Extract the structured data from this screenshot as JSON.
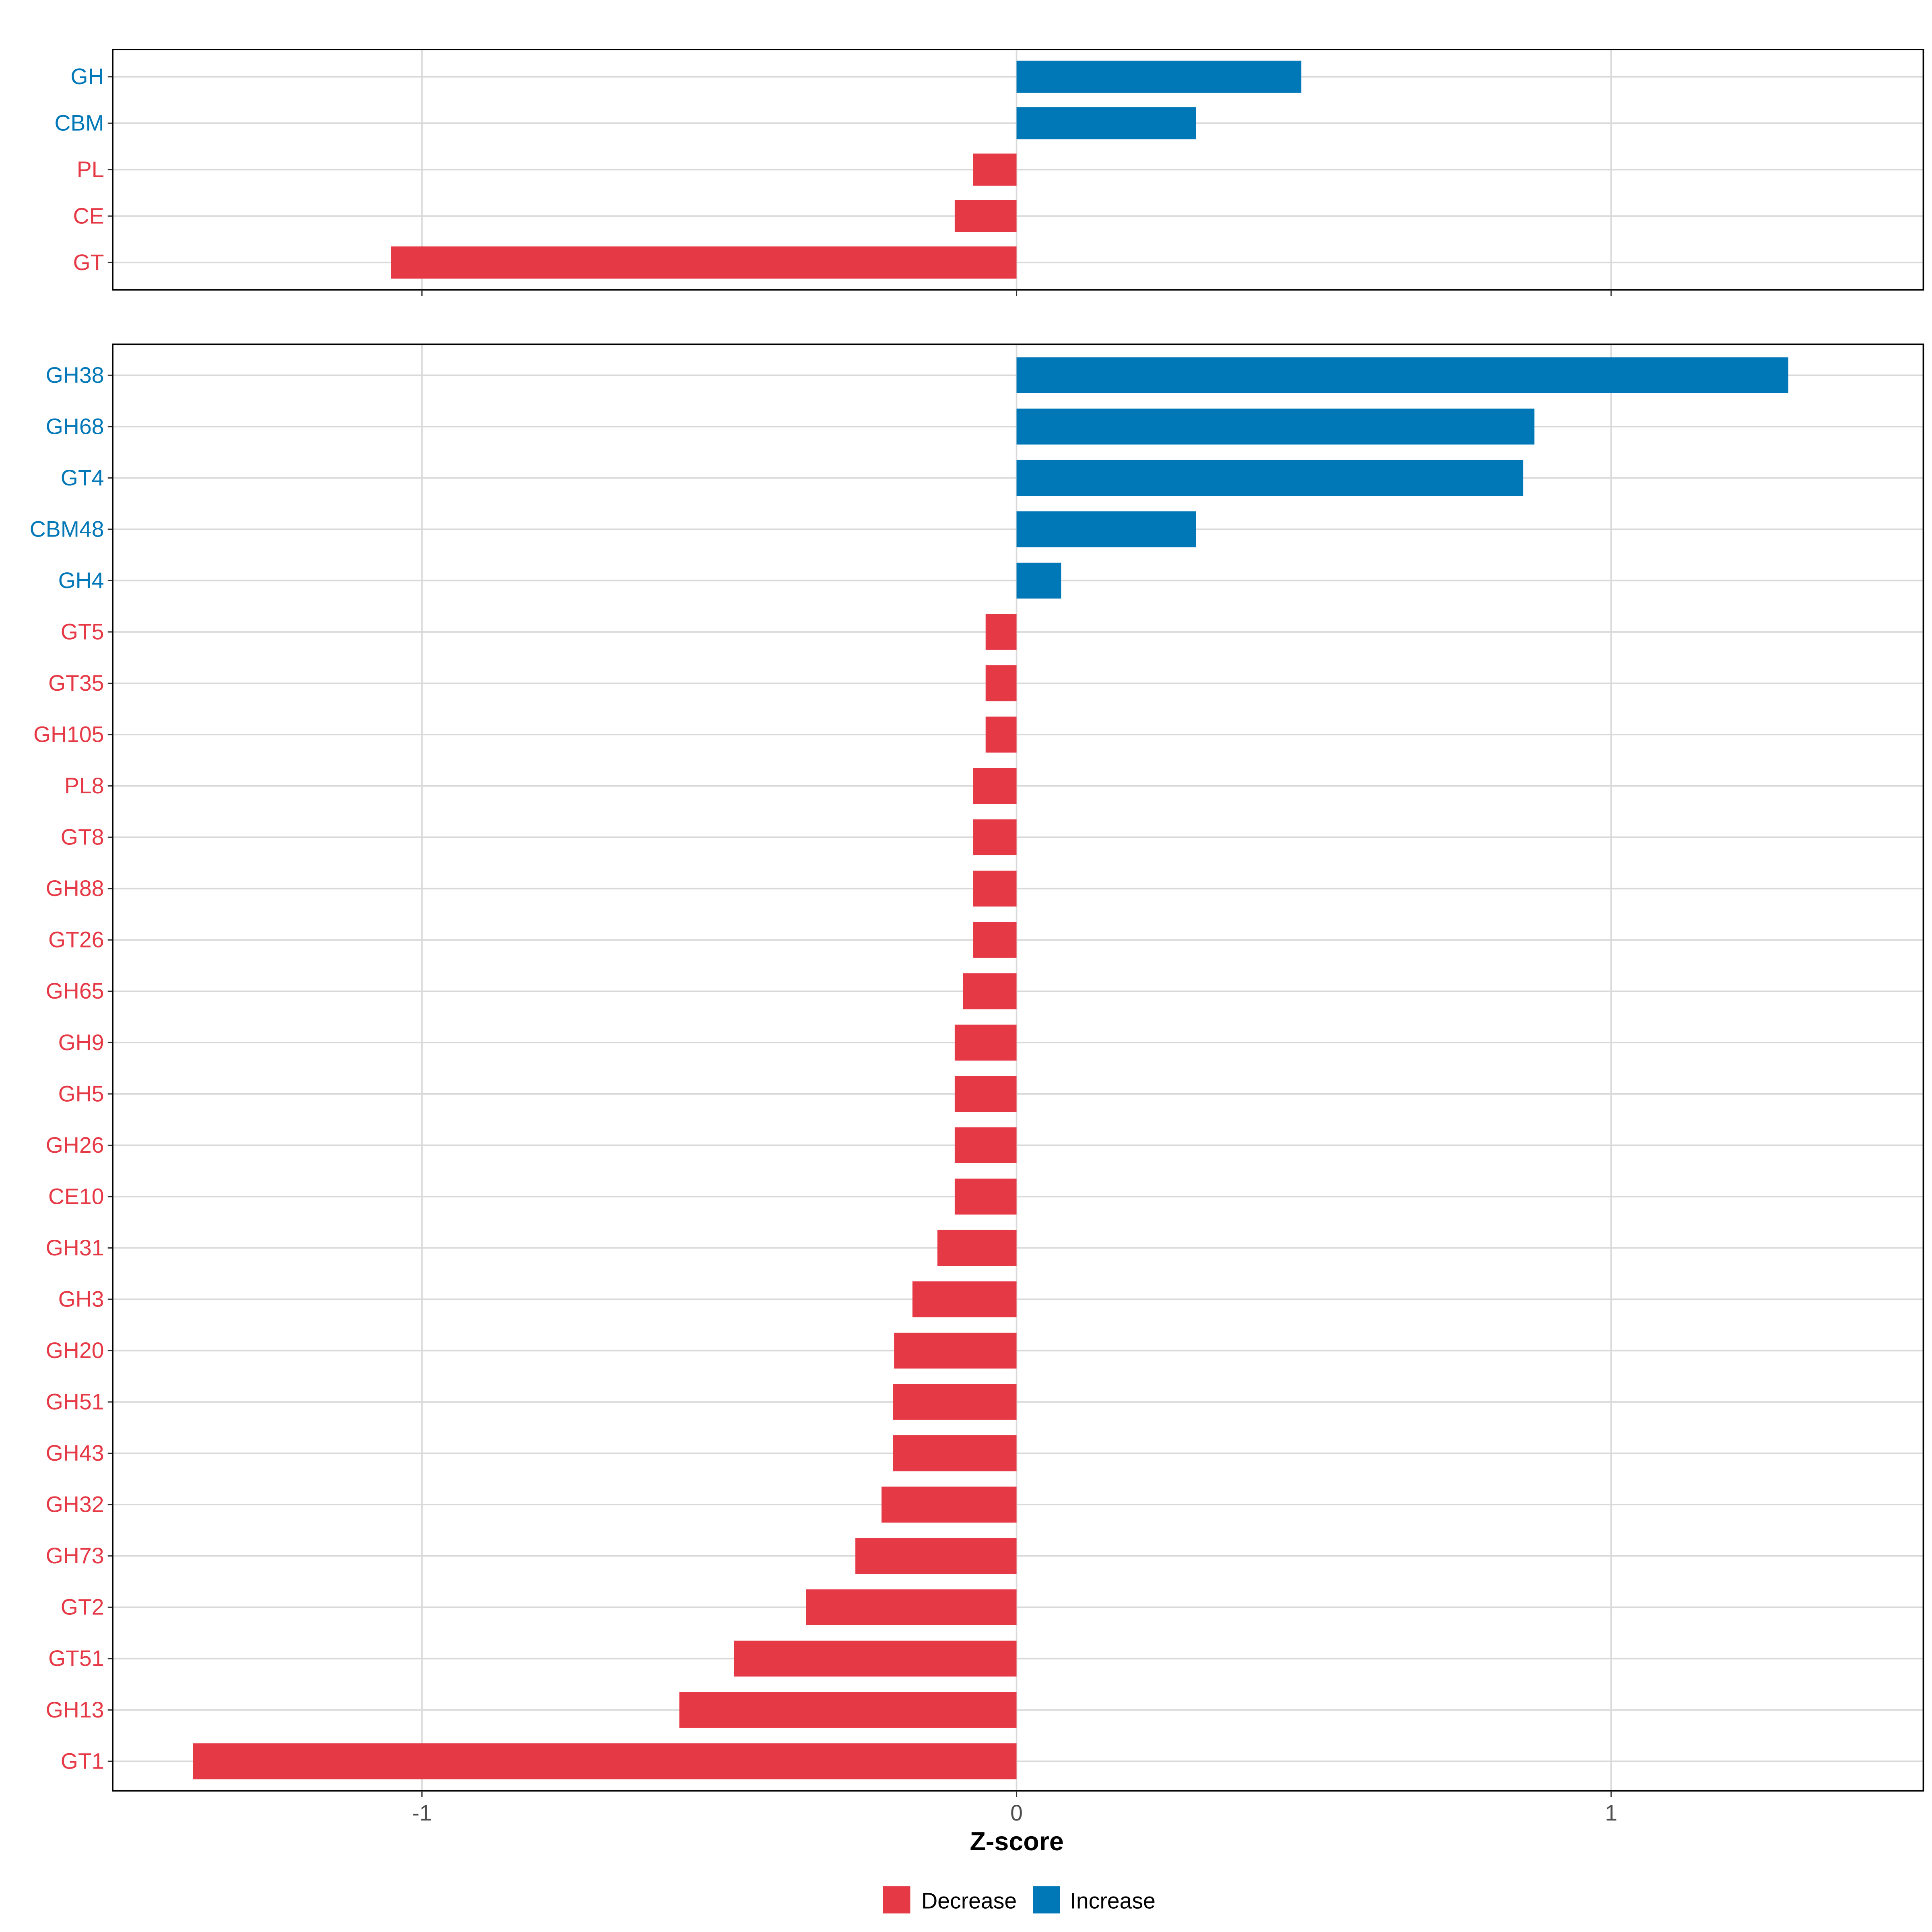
{
  "chart_data": [
    {
      "type": "bar",
      "orientation": "horizontal",
      "panel": "top",
      "categories": [
        "GH",
        "CBM",
        "PL",
        "CE",
        "GT"
      ],
      "values": [
        0.479,
        0.302,
        -0.073,
        -0.104,
        -1.052
      ],
      "xlim": [
        -1.52,
        1.525
      ],
      "grid": true
    },
    {
      "type": "bar",
      "orientation": "horizontal",
      "panel": "bottom",
      "categories": [
        "GH38",
        "GH68",
        "GT4",
        "CBM48",
        "GH4",
        "GT5",
        "GT35",
        "GH105",
        "PL8",
        "GT8",
        "GH88",
        "GT26",
        "GH65",
        "GH9",
        "GH5",
        "GH26",
        "CE10",
        "GH31",
        "GH3",
        "GH20",
        "GH51",
        "GH43",
        "GH32",
        "GH73",
        "GT2",
        "GT51",
        "GH13",
        "GT1"
      ],
      "values": [
        1.298,
        0.871,
        0.852,
        0.302,
        0.075,
        -0.052,
        -0.052,
        -0.052,
        -0.073,
        -0.073,
        -0.073,
        -0.073,
        -0.09,
        -0.104,
        -0.104,
        -0.104,
        -0.104,
        -0.133,
        -0.175,
        -0.206,
        -0.208,
        -0.208,
        -0.227,
        -0.271,
        -0.354,
        -0.475,
        -0.567,
        -1.385
      ],
      "xlim": [
        -1.52,
        1.525
      ],
      "grid": true
    }
  ],
  "axis": {
    "xlabel": "Z-score",
    "ticks": [
      -1,
      0,
      1
    ],
    "tick_labels": [
      "-1",
      "0",
      "1"
    ]
  },
  "legend": {
    "placement": "bottom",
    "items": [
      {
        "label": "Decrease",
        "color": "#E63946"
      },
      {
        "label": "Increase",
        "color": "#0077B6"
      }
    ]
  },
  "colors": {
    "decrease": "#E63946",
    "increase": "#0077B6",
    "grid": "#D9D9D9"
  }
}
